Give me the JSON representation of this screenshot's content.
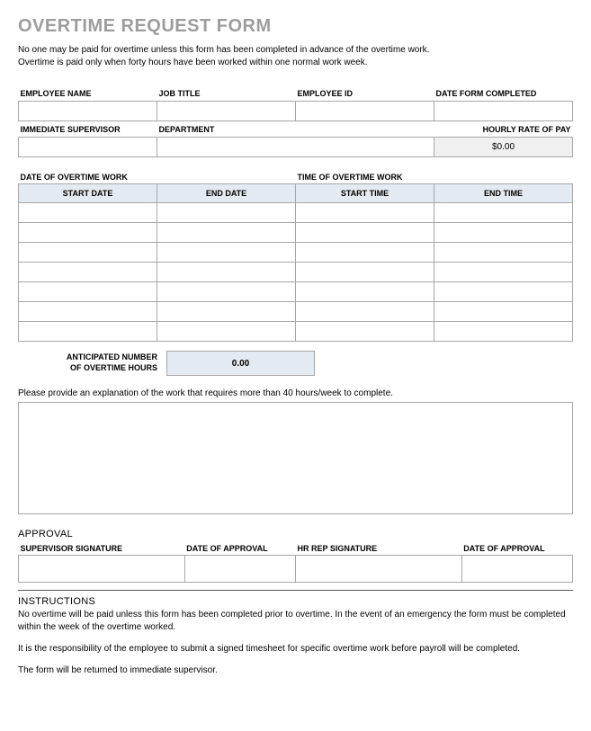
{
  "title": "OVERTIME REQUEST FORM",
  "intro_line1": "No one may be paid for overtime unless this form has been completed in advance of the overtime work.",
  "intro_line2": "Overtime is paid only when forty hours have been worked within one normal work week.",
  "employee": {
    "name_label": "EMPLOYEE NAME",
    "job_title_label": "JOB TITLE",
    "employee_id_label": "EMPLOYEE ID",
    "date_completed_label": "DATE FORM COMPLETED",
    "supervisor_label": "IMMEDIATE SUPERVISOR",
    "department_label": "DEPARTMENT",
    "hourly_rate_label": "HOURLY RATE OF PAY",
    "hourly_rate_value": "$0.00"
  },
  "overtime": {
    "date_header": "DATE OF OVERTIME WORK",
    "time_header": "TIME OF OVERTIME WORK",
    "start_date": "START DATE",
    "end_date": "END DATE",
    "start_time": "START TIME",
    "end_time": "END TIME",
    "row_count": 7,
    "anticipated_label_l1": "ANTICIPATED NUMBER",
    "anticipated_label_l2": "OF OVERTIME HOURS",
    "anticipated_value": "0.00",
    "explanation_label": "Please provide an explanation of the work that requires more than 40 hours/week to complete."
  },
  "approval": {
    "heading": "APPROVAL",
    "supervisor_sig_label": "SUPERVISOR SIGNATURE",
    "date1_label": "DATE OF APPROVAL",
    "hr_sig_label": "HR REP SIGNATURE",
    "date2_label": "DATE OF APPROVAL"
  },
  "instructions": {
    "heading": "INSTRUCTIONS",
    "p1": "No overtime will be paid unless this form has been completed prior to overtime.  In the event of an emergency the form must be completed within the week of the overtime worked.",
    "p2": "It is the responsibility of the employee to submit a signed timesheet for specific overtime work before payroll will be completed.",
    "p3": "The form will be returned to immediate supervisor."
  },
  "colors": {
    "title_color": "#9c9c9c",
    "border_color": "#a7a7a7",
    "header_bg": "#e4eaf1",
    "gray_bg": "#f0f0f0"
  }
}
